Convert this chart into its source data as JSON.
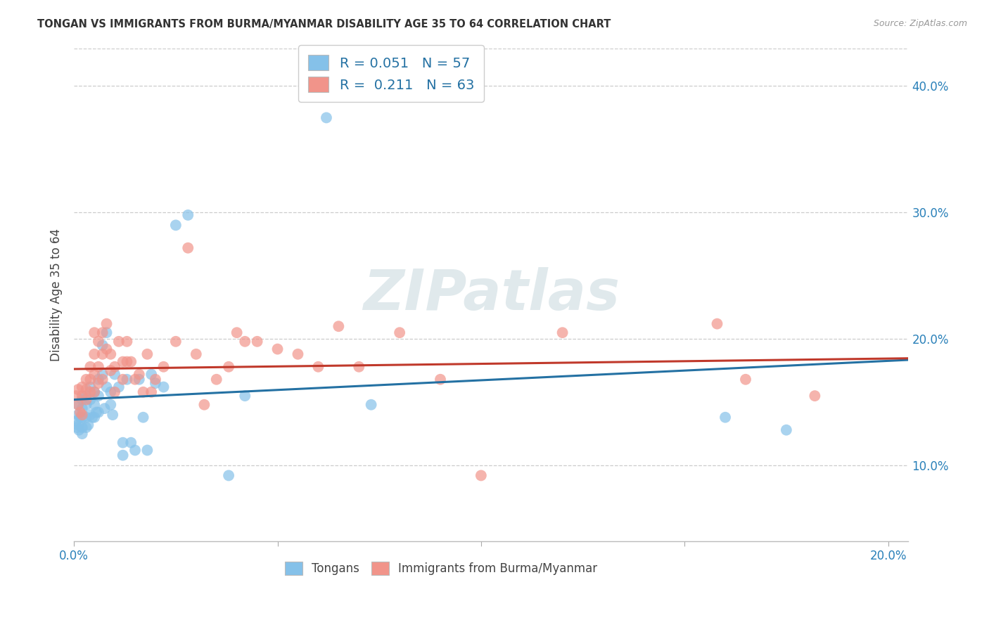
{
  "title": "TONGAN VS IMMIGRANTS FROM BURMA/MYANMAR DISABILITY AGE 35 TO 64 CORRELATION CHART",
  "source": "Source: ZipAtlas.com",
  "ylabel": "Disability Age 35 to 64",
  "xlim": [
    0.0,
    0.205
  ],
  "ylim": [
    0.04,
    0.43
  ],
  "xticks": [
    0.0,
    0.05,
    0.1,
    0.15,
    0.2
  ],
  "yticks": [
    0.1,
    0.2,
    0.3,
    0.4
  ],
  "xtick_labels": [
    "0.0%",
    "",
    "",
    "",
    "20.0%"
  ],
  "ytick_labels": [
    "10.0%",
    "20.0%",
    "30.0%",
    "40.0%"
  ],
  "blue_color": "#85c1e9",
  "pink_color": "#f1948a",
  "blue_line_color": "#2471a3",
  "pink_line_color": "#c0392b",
  "legend_blue_label": "R = 0.051   N = 57",
  "legend_pink_label": "R =  0.211   N = 63",
  "watermark": "ZIPatlas",
  "legend_items": [
    "Tongans",
    "Immigrants from Burma/Myanmar"
  ],
  "blue_x": [
    0.0005,
    0.0008,
    0.001,
    0.001,
    0.001,
    0.0012,
    0.0015,
    0.002,
    0.002,
    0.002,
    0.002,
    0.002,
    0.003,
    0.003,
    0.003,
    0.003,
    0.0035,
    0.004,
    0.004,
    0.004,
    0.0045,
    0.005,
    0.005,
    0.005,
    0.0055,
    0.006,
    0.006,
    0.006,
    0.007,
    0.007,
    0.0075,
    0.008,
    0.008,
    0.009,
    0.009,
    0.0095,
    0.01,
    0.011,
    0.012,
    0.012,
    0.013,
    0.014,
    0.015,
    0.016,
    0.017,
    0.018,
    0.019,
    0.02,
    0.022,
    0.025,
    0.028,
    0.038,
    0.042,
    0.062,
    0.073,
    0.16,
    0.175
  ],
  "blue_y": [
    0.135,
    0.13,
    0.148,
    0.14,
    0.132,
    0.128,
    0.138,
    0.152,
    0.145,
    0.138,
    0.13,
    0.125,
    0.155,
    0.148,
    0.138,
    0.13,
    0.132,
    0.162,
    0.152,
    0.14,
    0.138,
    0.158,
    0.148,
    0.138,
    0.142,
    0.168,
    0.155,
    0.142,
    0.195,
    0.172,
    0.145,
    0.205,
    0.162,
    0.158,
    0.148,
    0.14,
    0.172,
    0.162,
    0.118,
    0.108,
    0.168,
    0.118,
    0.112,
    0.168,
    0.138,
    0.112,
    0.172,
    0.165,
    0.162,
    0.29,
    0.298,
    0.092,
    0.155,
    0.375,
    0.148,
    0.138,
    0.128
  ],
  "pink_x": [
    0.0005,
    0.001,
    0.001,
    0.0015,
    0.002,
    0.002,
    0.002,
    0.003,
    0.003,
    0.003,
    0.004,
    0.004,
    0.004,
    0.005,
    0.005,
    0.005,
    0.005,
    0.006,
    0.006,
    0.006,
    0.007,
    0.007,
    0.007,
    0.008,
    0.008,
    0.009,
    0.009,
    0.01,
    0.01,
    0.011,
    0.012,
    0.012,
    0.013,
    0.013,
    0.014,
    0.015,
    0.016,
    0.017,
    0.018,
    0.019,
    0.02,
    0.022,
    0.025,
    0.028,
    0.03,
    0.032,
    0.035,
    0.038,
    0.04,
    0.042,
    0.045,
    0.05,
    0.055,
    0.06,
    0.065,
    0.07,
    0.08,
    0.09,
    0.1,
    0.12,
    0.158,
    0.165,
    0.182
  ],
  "pink_y": [
    0.155,
    0.16,
    0.148,
    0.142,
    0.162,
    0.155,
    0.14,
    0.168,
    0.16,
    0.152,
    0.178,
    0.168,
    0.158,
    0.205,
    0.188,
    0.172,
    0.158,
    0.198,
    0.178,
    0.165,
    0.205,
    0.188,
    0.168,
    0.212,
    0.192,
    0.188,
    0.175,
    0.178,
    0.158,
    0.198,
    0.182,
    0.168,
    0.198,
    0.182,
    0.182,
    0.168,
    0.172,
    0.158,
    0.188,
    0.158,
    0.168,
    0.178,
    0.198,
    0.272,
    0.188,
    0.148,
    0.168,
    0.178,
    0.205,
    0.198,
    0.198,
    0.192,
    0.188,
    0.178,
    0.21,
    0.178,
    0.205,
    0.168,
    0.092,
    0.205,
    0.212,
    0.168,
    0.155
  ]
}
